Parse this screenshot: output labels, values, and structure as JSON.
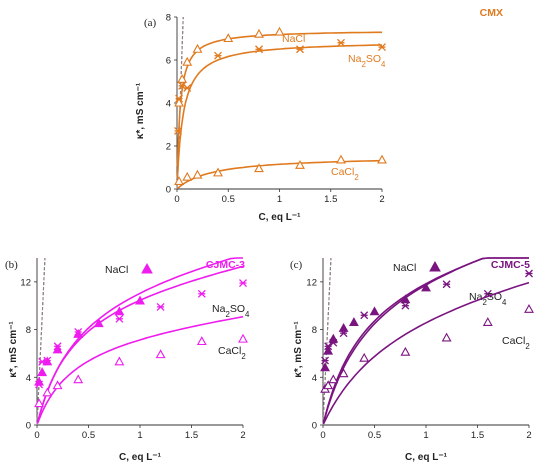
{
  "chart_data": [
    {
      "type": "scatter",
      "panel_label": "(a)",
      "title": "CMX",
      "color": "#E07A1F",
      "xlabel": "C,  eq L⁻¹",
      "ylabel": "κ*,  mS cm⁻¹",
      "xlim": [
        0,
        2
      ],
      "ylim": [
        0,
        8
      ],
      "xticks": [
        "0",
        "0.5",
        "1",
        "1.5",
        "2"
      ],
      "yticks": [
        "0",
        "2",
        "4",
        "6",
        "8"
      ],
      "series": [
        {
          "name": "NaCl",
          "marker": "triangle",
          "x": [
            0.02,
            0.05,
            0.1,
            0.2,
            0.5,
            0.8,
            1.0
          ],
          "y": [
            4.0,
            5.1,
            5.9,
            6.5,
            7.0,
            7.2,
            7.3
          ],
          "fit_k": [
            7.4,
            0.03
          ]
        },
        {
          "name": "Na₂SO₄",
          "marker": "asterisk",
          "x": [
            0.01,
            0.02,
            0.05,
            0.1,
            0.4,
            0.8,
            1.2,
            1.6,
            2.0
          ],
          "y": [
            2.7,
            4.2,
            4.8,
            4.7,
            6.2,
            6.5,
            6.5,
            6.8,
            6.6
          ],
          "fit_k": [
            6.9,
            0.06
          ]
        },
        {
          "name": "CaCl₂",
          "marker": "open-triangle",
          "x": [
            0.02,
            0.1,
            0.2,
            0.4,
            0.8,
            1.2,
            1.6,
            2.0
          ],
          "y": [
            0.35,
            0.55,
            0.65,
            0.75,
            0.95,
            1.1,
            1.35,
            1.35
          ],
          "fit_k": [
            1.55,
            0.35
          ]
        }
      ]
    },
    {
      "type": "scatter",
      "panel_label": "(b)",
      "title": "CJMC-3",
      "color": "#EE1CEE",
      "xlabel": "C,  eq L⁻¹",
      "ylabel": "κ*,  mS cm⁻¹",
      "xlim": [
        0,
        2
      ],
      "ylim": [
        0,
        14
      ],
      "xticks": [
        "0",
        "0.5",
        "1",
        "1.5",
        "2"
      ],
      "yticks": [
        "0",
        "4",
        "8",
        "12"
      ],
      "series": [
        {
          "name": "NaCl",
          "marker": "triangle",
          "x": [
            0.02,
            0.05,
            0.1,
            0.2,
            0.4,
            0.6,
            0.8,
            1.0
          ],
          "y": [
            3.6,
            4.4,
            5.3,
            6.3,
            7.6,
            8.5,
            9.5,
            10.4
          ],
          "fit_k": [
            12.6,
            0.35
          ]
        },
        {
          "name": "Na₂SO₄",
          "marker": "asterisk",
          "x": [
            0.02,
            0.05,
            0.1,
            0.2,
            0.4,
            0.8,
            1.2,
            1.6,
            2.0
          ],
          "y": [
            3.4,
            5.3,
            5.4,
            6.6,
            7.8,
            8.9,
            9.9,
            11.0,
            11.9
          ],
          "fit_k": [
            13.8,
            0.4
          ]
        },
        {
          "name": "CaCl₂",
          "marker": "open-triangle",
          "x": [
            0.02,
            0.1,
            0.2,
            0.4,
            0.8,
            1.2,
            1.6,
            2.0
          ],
          "y": [
            1.8,
            2.7,
            3.3,
            3.8,
            5.3,
            5.9,
            7.0,
            7.2
          ],
          "fit_k": [
            8.6,
            0.35
          ]
        }
      ]
    },
    {
      "type": "scatter",
      "panel_label": "(c)",
      "title": "CJMC-5",
      "color": "#7A1480",
      "xlabel": "C,  eq L⁻¹",
      "ylabel": "κ*,  mS cm⁻¹",
      "xlim": [
        0,
        2
      ],
      "ylim": [
        0,
        14
      ],
      "xticks": [
        "0",
        "0.5",
        "1",
        "1.5",
        "2"
      ],
      "yticks": [
        "0",
        "4",
        "8",
        "12"
      ],
      "series": [
        {
          "name": "NaCl",
          "marker": "triangle",
          "x": [
            0.02,
            0.05,
            0.1,
            0.2,
            0.3,
            0.5,
            0.8,
            1.0
          ],
          "y": [
            4.8,
            6.2,
            7.2,
            8.1,
            8.6,
            9.5,
            10.5,
            11.5
          ],
          "fit_k": [
            14.8,
            0.4
          ]
        },
        {
          "name": "Na₂SO₄",
          "marker": "asterisk",
          "x": [
            0.02,
            0.05,
            0.1,
            0.2,
            0.4,
            0.8,
            1.2,
            1.6,
            2.0
          ],
          "y": [
            5.4,
            6.6,
            6.9,
            7.7,
            9.2,
            10.0,
            11.8,
            11.0,
            12.7
          ],
          "fit_k": [
            15.2,
            0.45
          ]
        },
        {
          "name": "CaCl₂",
          "marker": "open-triangle",
          "x": [
            0.02,
            0.05,
            0.1,
            0.2,
            0.4,
            0.8,
            1.2,
            1.6,
            2.0
          ],
          "y": [
            3.0,
            3.3,
            3.8,
            4.3,
            5.6,
            6.1,
            7.3,
            8.6,
            9.7
          ],
          "fit_k": [
            13.0,
            0.7
          ]
        }
      ]
    }
  ]
}
